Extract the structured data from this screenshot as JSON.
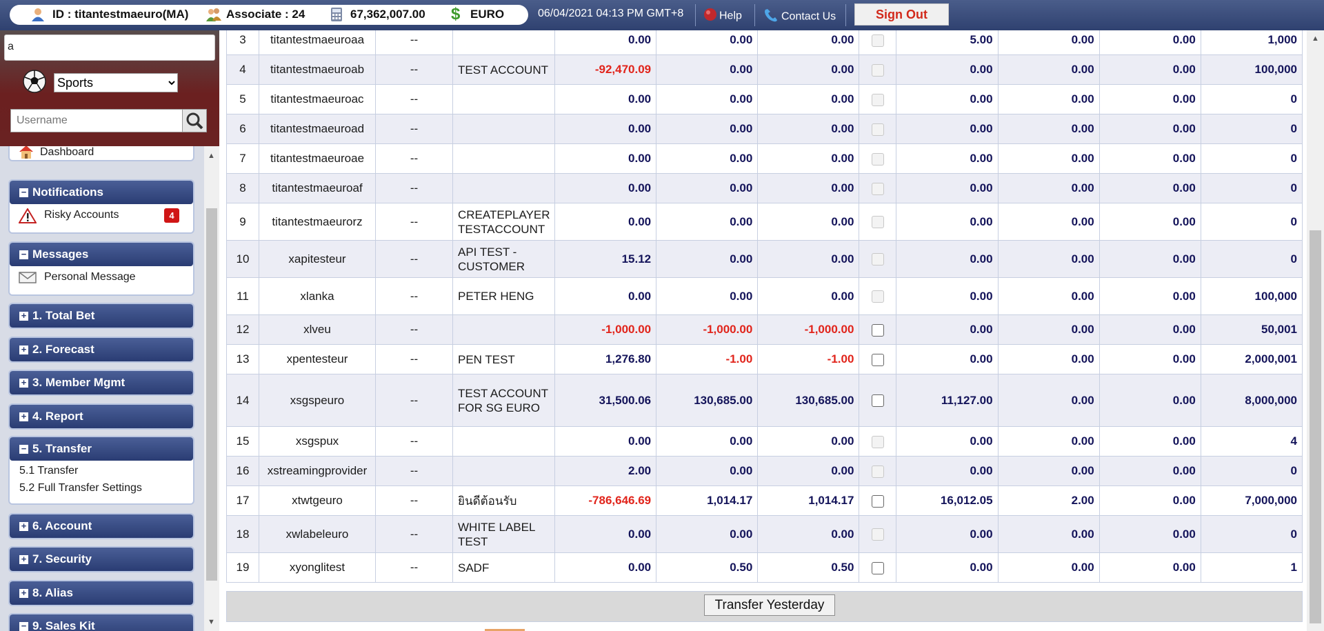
{
  "header": {
    "user_id": "ID : titantestmaeuro(MA)",
    "associate": "Associate : 24",
    "balance": "67,362,007.00",
    "currency": "EURO",
    "datetime": "06/04/2021 04:13 PM GMT+8",
    "help_label": "Help",
    "contact_label": "Contact Us",
    "signout_label": "Sign Out"
  },
  "sidebar": {
    "search_value": "a",
    "sport_selected": "Sports",
    "username_placeholder": "Username",
    "dashboard_label": "Dashboard",
    "notifications": {
      "title": "Notifications",
      "items": [
        {
          "label": "Risky Accounts",
          "badge": "4"
        }
      ]
    },
    "messages": {
      "title": "Messages",
      "items": [
        {
          "label": "Personal Message"
        }
      ]
    },
    "menus": {
      "total_bet": "1. Total Bet",
      "forecast": "2. Forecast",
      "member_mgmt": "3. Member Mgmt",
      "report": "4. Report",
      "transfer": "5. Transfer",
      "transfer_items": [
        "5.1 Transfer",
        "5.2 Full Transfer Settings"
      ],
      "account": "6. Account",
      "security": "7. Security",
      "alias": "8. Alias",
      "sales_kit": "9. Sales Kit"
    }
  },
  "table": {
    "rows": [
      {
        "no": "3",
        "username": "titantestmaeuroaa",
        "status": "--",
        "name": "",
        "c1": "0.00",
        "c2": "0.00",
        "c3": "0.00",
        "checked": false,
        "enabled": false,
        "c4": "5.00",
        "c5": "0.00",
        "c6": "0.00",
        "c7": "1,000"
      },
      {
        "no": "4",
        "username": "titantestmaeuroab",
        "status": "--",
        "name": "TEST ACCOUNT",
        "c1": "-92,470.09",
        "c2": "0.00",
        "c3": "0.00",
        "checked": false,
        "enabled": false,
        "c4": "0.00",
        "c5": "0.00",
        "c6": "0.00",
        "c7": "100,000"
      },
      {
        "no": "5",
        "username": "titantestmaeuroac",
        "status": "--",
        "name": "",
        "c1": "0.00",
        "c2": "0.00",
        "c3": "0.00",
        "checked": false,
        "enabled": false,
        "c4": "0.00",
        "c5": "0.00",
        "c6": "0.00",
        "c7": "0"
      },
      {
        "no": "6",
        "username": "titantestmaeuroad",
        "status": "--",
        "name": "",
        "c1": "0.00",
        "c2": "0.00",
        "c3": "0.00",
        "checked": false,
        "enabled": false,
        "c4": "0.00",
        "c5": "0.00",
        "c6": "0.00",
        "c7": "0"
      },
      {
        "no": "7",
        "username": "titantestmaeuroae",
        "status": "--",
        "name": "",
        "c1": "0.00",
        "c2": "0.00",
        "c3": "0.00",
        "checked": false,
        "enabled": false,
        "c4": "0.00",
        "c5": "0.00",
        "c6": "0.00",
        "c7": "0"
      },
      {
        "no": "8",
        "username": "titantestmaeuroaf",
        "status": "--",
        "name": "",
        "c1": "0.00",
        "c2": "0.00",
        "c3": "0.00",
        "checked": false,
        "enabled": false,
        "c4": "0.00",
        "c5": "0.00",
        "c6": "0.00",
        "c7": "0"
      },
      {
        "no": "9",
        "username": "titantestmaeurorz",
        "status": "--",
        "name": "CREATEPLAYER TESTACCOUNT",
        "c1": "0.00",
        "c2": "0.00",
        "c3": "0.00",
        "checked": false,
        "enabled": false,
        "c4": "0.00",
        "c5": "0.00",
        "c6": "0.00",
        "c7": "0"
      },
      {
        "no": "10",
        "username": "xapitesteur",
        "status": "--",
        "name": "API TEST - CUSTOMER",
        "c1": "15.12",
        "c2": "0.00",
        "c3": "0.00",
        "checked": false,
        "enabled": false,
        "c4": "0.00",
        "c5": "0.00",
        "c6": "0.00",
        "c7": "0"
      },
      {
        "no": "11",
        "username": "xlanka",
        "status": "--",
        "name": "PETER HENG",
        "c1": "0.00",
        "c2": "0.00",
        "c3": "0.00",
        "checked": false,
        "enabled": false,
        "c4": "0.00",
        "c5": "0.00",
        "c6": "0.00",
        "c7": "100,000"
      },
      {
        "no": "12",
        "username": "xlveu",
        "status": "--",
        "name": "",
        "c1": "-1,000.00",
        "c2": "-1,000.00",
        "c3": "-1,000.00",
        "checked": false,
        "enabled": true,
        "c4": "0.00",
        "c5": "0.00",
        "c6": "0.00",
        "c7": "50,001"
      },
      {
        "no": "13",
        "username": "xpentesteur",
        "status": "--",
        "name": "PEN TEST",
        "c1": "1,276.80",
        "c2": "-1.00",
        "c3": "-1.00",
        "checked": false,
        "enabled": true,
        "c4": "0.00",
        "c5": "0.00",
        "c6": "0.00",
        "c7": "2,000,001"
      },
      {
        "no": "14",
        "username": "xsgspeuro",
        "status": "--",
        "name": "TEST ACCOUNT FOR SG EURO",
        "c1": "31,500.06",
        "c2": "130,685.00",
        "c3": "130,685.00",
        "checked": false,
        "enabled": true,
        "c4": "11,127.00",
        "c5": "0.00",
        "c6": "0.00",
        "c7": "8,000,000"
      },
      {
        "no": "15",
        "username": "xsgspux",
        "status": "--",
        "name": "",
        "c1": "0.00",
        "c2": "0.00",
        "c3": "0.00",
        "checked": false,
        "enabled": false,
        "c4": "0.00",
        "c5": "0.00",
        "c6": "0.00",
        "c7": "4"
      },
      {
        "no": "16",
        "username": "xstreamingprovider",
        "status": "--",
        "name": "",
        "c1": "2.00",
        "c2": "0.00",
        "c3": "0.00",
        "checked": false,
        "enabled": false,
        "c4": "0.00",
        "c5": "0.00",
        "c6": "0.00",
        "c7": "0"
      },
      {
        "no": "17",
        "username": "xtwtgeuro",
        "status": "--",
        "name": "ยินดีต้อนรับ",
        "c1": "-786,646.69",
        "c2": "1,014.17",
        "c3": "1,014.17",
        "checked": false,
        "enabled": true,
        "c4": "16,012.05",
        "c5": "2.00",
        "c6": "0.00",
        "c7": "7,000,000"
      },
      {
        "no": "18",
        "username": "xwlabeleuro",
        "status": "--",
        "name": "WHITE LABEL TEST",
        "c1": "0.00",
        "c2": "0.00",
        "c3": "0.00",
        "checked": false,
        "enabled": false,
        "c4": "0.00",
        "c5": "0.00",
        "c6": "0.00",
        "c7": "0"
      },
      {
        "no": "19",
        "username": "xyonglitest",
        "status": "--",
        "name": "SADF",
        "c1": "0.00",
        "c2": "0.50",
        "c3": "0.50",
        "checked": false,
        "enabled": true,
        "c4": "0.00",
        "c5": "0.00",
        "c6": "0.00",
        "c7": "1"
      }
    ],
    "transfer_yesterday_label": "Transfer Yesterday"
  }
}
